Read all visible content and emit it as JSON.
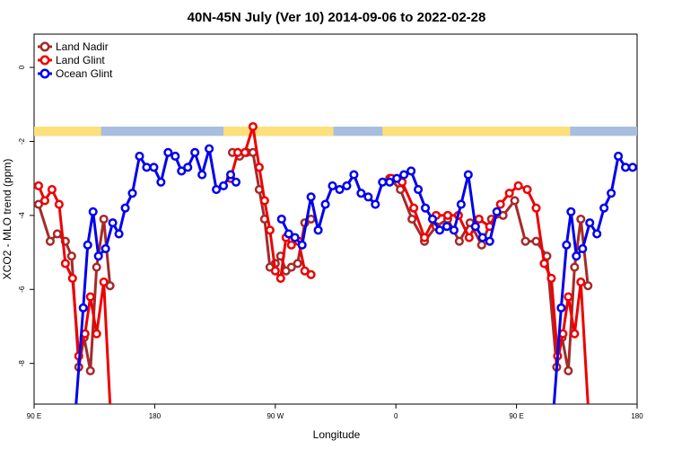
{
  "chart_data": {
    "type": "line",
    "title": "40N-45N July (Ver 10)   2014-09-06 to 2022-02-28",
    "xlabel": "Longitude",
    "ylabel": "XCO2 - MLO trend (ppm)",
    "xlim": [
      0,
      600
    ],
    "ylim": [
      -9.1,
      0.9
    ],
    "x_ticks": [
      {
        "value": 0,
        "label": "90 E"
      },
      {
        "value": 135,
        "label": "180"
      },
      {
        "value": 270,
        "label": "90 W"
      },
      {
        "value": 405,
        "label": "0"
      },
      {
        "value": 540,
        "label": "90 E"
      },
      {
        "value": 675,
        "label": "180"
      }
    ],
    "y_ticks": [
      {
        "value": 0,
        "label": "0"
      },
      {
        "value": -2,
        "label": "-2"
      },
      {
        "value": -4,
        "label": "-4"
      },
      {
        "value": -6,
        "label": "-6"
      },
      {
        "value": -8,
        "label": "-8"
      }
    ],
    "legend_position": "top-left",
    "land_ocean_strip": {
      "y_range": [
        -1.85,
        -1.6
      ],
      "land_color": "#fde07a",
      "ocean_color": "#a8bee0"
    },
    "series": [
      {
        "name": "Land Nadir",
        "color": "#a52a2a",
        "segments": [
          [
            [
              5,
              -3.7
            ],
            [
              18,
              -4.7
            ],
            [
              26,
              -4.5
            ],
            [
              35,
              -4.7
            ],
            [
              42,
              -5.1
            ],
            [
              50,
              -8.1
            ],
            [
              56,
              -7.3
            ],
            [
              63,
              -8.2
            ],
            [
              70,
              -5.4
            ],
            [
              78,
              -4.1
            ],
            [
              85,
              -5.9
            ]
          ],
          [
            [
              222,
              -2.3
            ],
            [
              230,
              -2.4
            ],
            [
              238,
              -2.3
            ],
            [
              245,
              -2.3
            ],
            [
              252,
              -3.3
            ],
            [
              258,
              -4.1
            ],
            [
              264,
              -5.4
            ],
            [
              270,
              -5.3
            ],
            [
              276,
              -5.1
            ],
            [
              282,
              -5.5
            ],
            [
              288,
              -5.4
            ],
            [
              295,
              -5.3
            ],
            [
              303,
              -4.2
            ],
            [
              310,
              -4.1
            ]
          ],
          [
            [
              398,
              -3.0
            ],
            [
              410,
              -3.3
            ],
            [
              423,
              -4.1
            ],
            [
              437,
              -4.7
            ],
            [
              450,
              -4.3
            ],
            [
              463,
              -4.1
            ],
            [
              476,
              -4.7
            ],
            [
              488,
              -4.2
            ],
            [
              501,
              -4.8
            ],
            [
              512,
              -4.1
            ],
            [
              525,
              -4.0
            ],
            [
              538,
              -3.6
            ],
            [
              550,
              -4.7
            ],
            [
              562,
              -4.7
            ],
            [
              574,
              -5.1
            ],
            [
              585,
              -8.1
            ],
            [
              591,
              -7.3
            ],
            [
              598,
              -8.2
            ],
            [
              605,
              -5.4
            ],
            [
              612,
              -4.1
            ],
            [
              620,
              -5.9
            ]
          ]
        ]
      },
      {
        "name": "Land Glint",
        "color": "#ee0000",
        "segments": [
          [
            [
              5,
              -3.2
            ],
            [
              12,
              -3.6
            ],
            [
              20,
              -3.3
            ],
            [
              28,
              -3.7
            ],
            [
              35,
              -5.3
            ],
            [
              43,
              -5.7
            ],
            [
              50,
              -7.8
            ],
            [
              57,
              -7.2
            ],
            [
              63,
              -6.2
            ],
            [
              70,
              -7.2
            ],
            [
              78,
              -5.8
            ],
            [
              85,
              -9.1
            ]
          ],
          [
            [
              220,
              -3.0
            ],
            [
              228,
              -2.3
            ],
            [
              236,
              -2.3
            ],
            [
              245,
              -1.6
            ],
            [
              252,
              -2.7
            ],
            [
              258,
              -3.6
            ],
            [
              264,
              -4.4
            ],
            [
              270,
              -5.5
            ],
            [
              276,
              -5.7
            ],
            [
              282,
              -4.6
            ],
            [
              288,
              -4.8
            ],
            [
              296,
              -4.7
            ],
            [
              303,
              -5.5
            ],
            [
              310,
              -5.6
            ]
          ],
          [
            [
              400,
              -3.0
            ],
            [
              412,
              -3.1
            ],
            [
              425,
              -3.8
            ],
            [
              437,
              -4.6
            ],
            [
              450,
              -4.0
            ],
            [
              463,
              -4.0
            ],
            [
              475,
              -4.0
            ],
            [
              487,
              -4.6
            ],
            [
              498,
              -4.1
            ],
            [
              510,
              -4.3
            ],
            [
              522,
              -3.7
            ],
            [
              532,
              -3.4
            ],
            [
              542,
              -3.2
            ],
            [
              552,
              -3.3
            ],
            [
              562,
              -3.8
            ],
            [
              571,
              -5.3
            ],
            [
              579,
              -5.7
            ],
            [
              586,
              -7.8
            ],
            [
              592,
              -7.2
            ],
            [
              598,
              -6.2
            ],
            [
              605,
              -7.2
            ],
            [
              612,
              -5.8
            ],
            [
              620,
              -9.1
            ]
          ]
        ]
      },
      {
        "name": "Ocean Glint",
        "color": "#0000ee",
        "segments": [
          [
            [
              47,
              -9.1
            ],
            [
              55,
              -6.5
            ],
            [
              60,
              -4.8
            ],
            [
              66,
              -3.9
            ],
            [
              72,
              -5.1
            ],
            [
              80,
              -4.9
            ],
            [
              88,
              -4.2
            ],
            [
              95,
              -4.5
            ],
            [
              102,
              -3.8
            ],
            [
              110,
              -3.4
            ],
            [
              118,
              -2.4
            ],
            [
              126,
              -2.7
            ],
            [
              134,
              -2.7
            ],
            [
              142,
              -3.1
            ],
            [
              150,
              -2.3
            ],
            [
              158,
              -2.4
            ],
            [
              165,
              -2.8
            ],
            [
              172,
              -2.7
            ],
            [
              180,
              -2.3
            ],
            [
              188,
              -2.9
            ],
            [
              196,
              -2.2
            ],
            [
              204,
              -3.3
            ],
            [
              212,
              -3.2
            ],
            [
              220,
              -2.9
            ],
            [
              226,
              -3.1
            ]
          ],
          [
            [
              277,
              -4.1
            ],
            [
              285,
              -4.5
            ],
            [
              292,
              -4.6
            ],
            [
              300,
              -4.8
            ],
            [
              310,
              -3.5
            ],
            [
              318,
              -4.4
            ],
            [
              326,
              -3.7
            ],
            [
              334,
              -3.2
            ],
            [
              342,
              -3.3
            ],
            [
              350,
              -3.2
            ],
            [
              358,
              -2.9
            ],
            [
              366,
              -3.4
            ],
            [
              374,
              -3.5
            ],
            [
              382,
              -3.7
            ],
            [
              390,
              -3.1
            ],
            [
              398,
              -3.1
            ],
            [
              406,
              -3.0
            ],
            [
              414,
              -2.9
            ],
            [
              422,
              -2.8
            ],
            [
              430,
              -3.3
            ],
            [
              438,
              -3.8
            ],
            [
              446,
              -4.1
            ],
            [
              454,
              -4.4
            ],
            [
              462,
              -4.3
            ],
            [
              470,
              -4.4
            ],
            [
              478,
              -3.7
            ],
            [
              486,
              -2.9
            ],
            [
              494,
              -4.3
            ],
            [
              502,
              -4.6
            ],
            [
              510,
              -4.7
            ],
            [
              518,
              -3.9
            ]
          ],
          [
            [
              582,
              -9.1
            ],
            [
              590,
              -6.5
            ],
            [
              596,
              -4.8
            ],
            [
              601,
              -3.9
            ],
            [
              607,
              -5.1
            ],
            [
              614,
              -4.9
            ],
            [
              622,
              -4.2
            ],
            [
              630,
              -4.5
            ],
            [
              638,
              -3.8
            ],
            [
              646,
              -3.4
            ],
            [
              654,
              -2.4
            ],
            [
              662,
              -2.7
            ],
            [
              670,
              -2.7
            ]
          ]
        ]
      }
    ]
  }
}
